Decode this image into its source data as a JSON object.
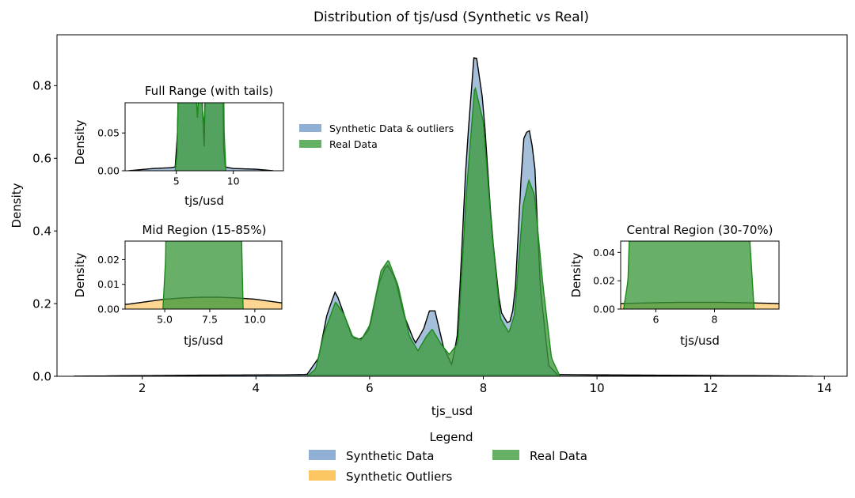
{
  "chart_data": [
    {
      "id": "main",
      "type": "area",
      "title": "Distribution of tjs/usd (Synthetic vs Real)",
      "xlabel": "tjs_usd",
      "ylabel": "Density",
      "xlim": [
        0.5,
        14.4
      ],
      "ylim": [
        0,
        0.94
      ],
      "xticks": [
        2,
        4,
        6,
        8,
        10,
        12,
        14
      ],
      "yticks": [
        0.0,
        0.2,
        0.4,
        0.6,
        0.8
      ],
      "grid": false,
      "legend": {
        "title": "Legend",
        "placement": "bottom-center",
        "entries": [
          {
            "label": "Synthetic Data",
            "color": "#8FB0D4"
          },
          {
            "label": "Synthetic Outliers",
            "color": "#FCC662"
          },
          {
            "label": "Real Data",
            "color": "#64B064"
          }
        ]
      },
      "series": [
        {
          "name": "Synthetic Data",
          "fill": "#7FA4CB",
          "stroke": "#000000",
          "points": [
            [
              0.8,
              0
            ],
            [
              3,
              0.003
            ],
            [
              4.5,
              0.004
            ],
            [
              4.9,
              0.005
            ],
            [
              5.1,
              0.05
            ],
            [
              5.25,
              0.17
            ],
            [
              5.4,
              0.235
            ],
            [
              5.55,
              0.17
            ],
            [
              5.7,
              0.105
            ],
            [
              5.85,
              0.102
            ],
            [
              6.0,
              0.13
            ],
            [
              6.15,
              0.25
            ],
            [
              6.3,
              0.31
            ],
            [
              6.45,
              0.27
            ],
            [
              6.6,
              0.17
            ],
            [
              6.8,
              0.09
            ],
            [
              6.95,
              0.13
            ],
            [
              7.05,
              0.18
            ],
            [
              7.15,
              0.18
            ],
            [
              7.3,
              0.08
            ],
            [
              7.45,
              0.03
            ],
            [
              7.55,
              0.12
            ],
            [
              7.7,
              0.6
            ],
            [
              7.85,
              0.91
            ],
            [
              8.0,
              0.75
            ],
            [
              8.15,
              0.4
            ],
            [
              8.3,
              0.18
            ],
            [
              8.45,
              0.14
            ],
            [
              8.55,
              0.2
            ],
            [
              8.7,
              0.65
            ],
            [
              8.8,
              0.685
            ],
            [
              8.9,
              0.6
            ],
            [
              9.0,
              0.25
            ],
            [
              9.15,
              0.03
            ],
            [
              9.3,
              0.005
            ],
            [
              10,
              0.003
            ],
            [
              12,
              0.002
            ],
            [
              13.5,
              0
            ]
          ]
        },
        {
          "name": "Synthetic Outliers",
          "fill": "#FCC662",
          "stroke": "#000000",
          "points": [
            [
              0.8,
              0
            ],
            [
              2,
              0.0015
            ],
            [
              3,
              0.002
            ],
            [
              4,
              0.003
            ],
            [
              5,
              0.004
            ],
            [
              6,
              0.0045
            ],
            [
              7,
              0.0048
            ],
            [
              8,
              0.0048
            ],
            [
              9,
              0.0045
            ],
            [
              10,
              0.004
            ],
            [
              11,
              0.003
            ],
            [
              12,
              0.002
            ],
            [
              13,
              0.0015
            ],
            [
              13.8,
              0
            ]
          ]
        },
        {
          "name": "Real Data",
          "fill": "#3E9A3E",
          "stroke": "#1A8A1A",
          "points": [
            [
              4.9,
              0
            ],
            [
              5.05,
              0.02
            ],
            [
              5.2,
              0.12
            ],
            [
              5.4,
              0.205
            ],
            [
              5.55,
              0.17
            ],
            [
              5.7,
              0.11
            ],
            [
              5.85,
              0.1
            ],
            [
              6.0,
              0.14
            ],
            [
              6.2,
              0.29
            ],
            [
              6.33,
              0.32
            ],
            [
              6.5,
              0.25
            ],
            [
              6.7,
              0.11
            ],
            [
              6.85,
              0.07
            ],
            [
              7.0,
              0.11
            ],
            [
              7.1,
              0.13
            ],
            [
              7.25,
              0.09
            ],
            [
              7.4,
              0.06
            ],
            [
              7.55,
              0.09
            ],
            [
              7.7,
              0.5
            ],
            [
              7.85,
              0.8
            ],
            [
              8.0,
              0.7
            ],
            [
              8.15,
              0.4
            ],
            [
              8.3,
              0.16
            ],
            [
              8.45,
              0.12
            ],
            [
              8.55,
              0.17
            ],
            [
              8.7,
              0.47
            ],
            [
              8.8,
              0.54
            ],
            [
              8.9,
              0.5
            ],
            [
              9.05,
              0.25
            ],
            [
              9.2,
              0.05
            ],
            [
              9.35,
              0
            ]
          ]
        }
      ]
    },
    {
      "id": "inset-full",
      "type": "area",
      "title": "Full Range (with tails)",
      "xlabel": "tjs/usd",
      "ylabel": "Density",
      "xlim": [
        0.5,
        14.4
      ],
      "ylim": [
        0,
        0.09
      ],
      "xticks": [
        5,
        10
      ],
      "yticks": [
        0.0,
        0.05
      ],
      "ytick_labels": [
        "0.00",
        "0.05"
      ],
      "legend": {
        "placement": "right",
        "entries": [
          {
            "label": "Synthetic Data & outliers",
            "color": "#8FB0D4"
          },
          {
            "label": "Real Data",
            "color": "#64B064"
          }
        ]
      }
    },
    {
      "id": "inset-mid",
      "type": "area",
      "title": "Mid Region (15-85%)",
      "xlabel": "tjs/usd",
      "ylabel": "Density",
      "xlim": [
        2.8,
        11.5
      ],
      "ylim": [
        0,
        0.0275
      ],
      "xticks": [
        5.0,
        7.5,
        10.0
      ],
      "xtick_labels": [
        "5.0",
        "7.5",
        "10.0"
      ],
      "yticks": [
        0.0,
        0.01,
        0.02
      ],
      "ytick_labels": [
        "0.00",
        "0.01",
        "0.02"
      ]
    },
    {
      "id": "inset-central",
      "type": "area",
      "title": "Central Region (30-70%)",
      "xlabel": "tjs/usd",
      "ylabel": "Density",
      "xlim": [
        4.8,
        10.2
      ],
      "ylim": [
        0,
        0.048
      ],
      "xticks": [
        6,
        8
      ],
      "yticks": [
        0.0,
        0.02,
        0.04
      ],
      "ytick_labels": [
        "0.00",
        "0.02",
        "0.04"
      ]
    }
  ]
}
